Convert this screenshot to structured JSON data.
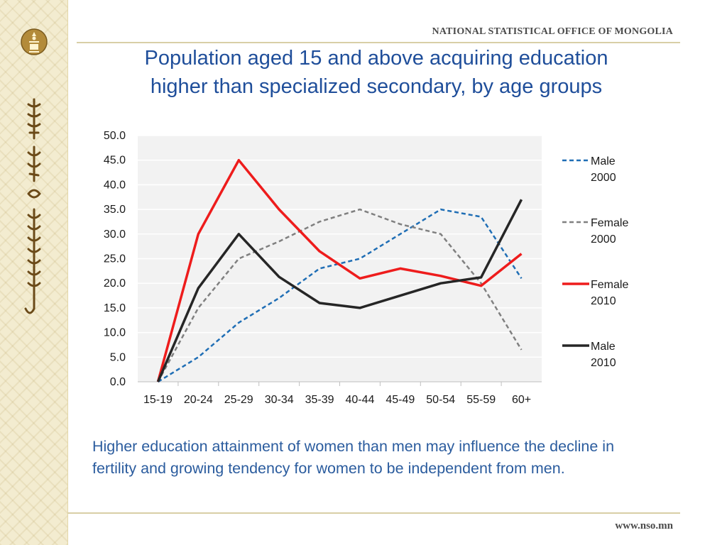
{
  "header": {
    "agency": "NATIONAL STATISTICAL OFFICE OF MONGOLIA",
    "title_line1": "Population aged 15 and above acquiring education",
    "title_line2": "higher than specialized secondary, by age groups"
  },
  "chart_data": {
    "type": "line",
    "title": "",
    "xlabel": "",
    "ylabel": "",
    "ylim": [
      0,
      50
    ],
    "y_ticks": [
      "0.0",
      "5.0",
      "10.0",
      "15.0",
      "20.0",
      "25.0",
      "30.0",
      "35.0",
      "40.0",
      "45.0",
      "50.0"
    ],
    "grid": "horizontal",
    "legend_position": "right",
    "categories": [
      "15-19",
      "20-24",
      "25-29",
      "30-34",
      "35-39",
      "40-44",
      "45-49",
      "50-54",
      "55-59",
      "60+"
    ],
    "series": [
      {
        "name_line1": "Male",
        "name_line2": "2000",
        "color": "#1f6eb5",
        "dash": "dashed",
        "values": [
          0.0,
          5.0,
          12.0,
          17.0,
          23.0,
          25.0,
          30.0,
          35.0,
          33.5,
          21.0
        ]
      },
      {
        "name_line1": "Female",
        "name_line2": "2000",
        "color": "#808080",
        "dash": "dashed",
        "values": [
          0.0,
          15.0,
          25.0,
          28.5,
          32.5,
          35.0,
          32.0,
          30.0,
          20.0,
          6.5
        ]
      },
      {
        "name_line1": "Female",
        "name_line2": "2010",
        "color": "#ee1c1c",
        "dash": "solid",
        "values": [
          0.0,
          30.0,
          45.0,
          35.0,
          26.5,
          21.0,
          23.0,
          21.5,
          19.5,
          26.0
        ]
      },
      {
        "name_line1": "Male",
        "name_line2": "2010",
        "color": "#262626",
        "dash": "solid",
        "values": [
          0.0,
          19.0,
          30.0,
          21.3,
          16.0,
          15.0,
          17.5,
          20.0,
          21.2,
          37.0
        ]
      }
    ]
  },
  "caption": "Higher education attainment of women than men may influence the decline in fertility and growing tendency for women to be independent from men.",
  "footer": {
    "url": "www.nso.mn"
  }
}
